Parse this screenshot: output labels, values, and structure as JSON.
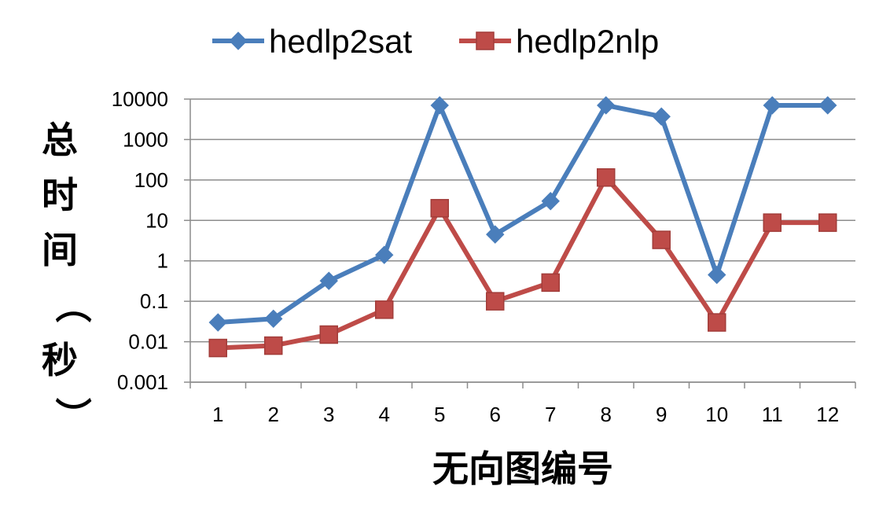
{
  "chart_data": {
    "type": "line",
    "title": "",
    "xlabel": "无向图编号",
    "ylabel": "总时间（秒）",
    "yscale": "log",
    "ylim": [
      0.001,
      10000
    ],
    "yticks": [
      "10000",
      "1000",
      "100",
      "10",
      "1",
      "0.1",
      "0.01",
      "0.001"
    ],
    "categories": [
      "1",
      "2",
      "3",
      "4",
      "5",
      "6",
      "7",
      "8",
      "9",
      "10",
      "11",
      "12"
    ],
    "grid": true,
    "legend_position": "top",
    "series": [
      {
        "name": "hedlp2sat",
        "color": "#4a7ebb",
        "marker": "diamond",
        "values": [
          0.03,
          0.037,
          0.32,
          1.4,
          7000,
          4.5,
          30,
          7000,
          3700,
          0.45,
          7000,
          7000
        ]
      },
      {
        "name": "hedlp2nlp",
        "color": "#be4b48",
        "marker": "square",
        "values": [
          0.007,
          0.008,
          0.015,
          0.062,
          20,
          0.1,
          0.29,
          115,
          3.3,
          0.03,
          8.8,
          8.8
        ]
      }
    ]
  }
}
